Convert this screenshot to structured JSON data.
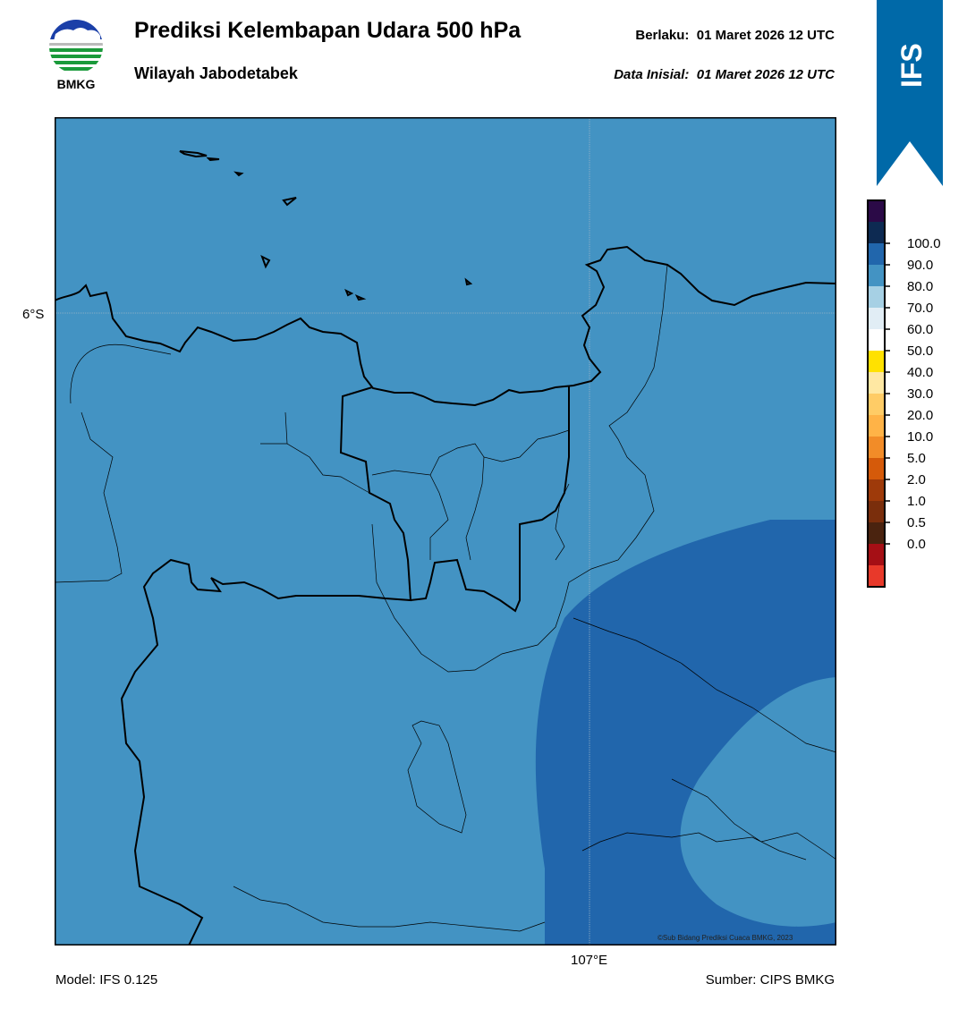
{
  "header": {
    "title": "Prediksi Kelembapan Udara 500 hPa",
    "region": "Wilayah Jabodetabek",
    "valid_label": "Berlaku:",
    "valid_time": "01 Maret 2026 12 UTC",
    "init_label": "Data Inisial:",
    "init_time": "01 Maret 2026 12 UTC"
  },
  "logo": {
    "text": "BMKG",
    "icon": "bmkg-logo"
  },
  "banner": {
    "text": "IFS",
    "color": "#0069a8"
  },
  "map": {
    "lat_label": "6°S",
    "lon_label": "107°E",
    "credit": "©Sub Bidang Prediksi Cuaca BMKG, 2023",
    "background_color": "#4393c3",
    "high_humidity_color": "#2166ac"
  },
  "colorbar": {
    "labels": [
      "100.0",
      "90.0",
      "80.0",
      "70.0",
      "60.0",
      "50.0",
      "40.0",
      "30.0",
      "20.0",
      "10.0",
      "5.0",
      "2.0",
      "1.0",
      "0.5",
      "0.0"
    ],
    "colors": [
      "#2b0a47",
      "#0d2a52",
      "#2166ac",
      "#4393c3",
      "#a6d0e4",
      "#e1edf5",
      "#ffffff",
      "#ffe100",
      "#ffe8a3",
      "#ffcc66",
      "#ffb347",
      "#f28c28",
      "#d55a0a",
      "#9e3a0a",
      "#7a2e0c",
      "#4a230f",
      "#a50f15",
      "#e8392a"
    ]
  },
  "footer": {
    "model": "Model: IFS 0.125",
    "source": "Sumber: CIPS BMKG"
  }
}
